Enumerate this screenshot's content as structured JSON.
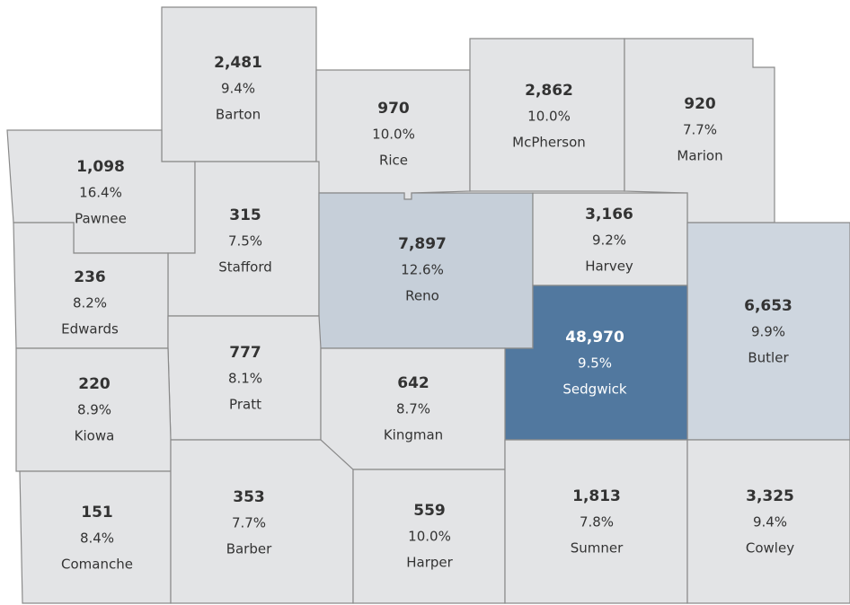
{
  "counties": [
    {
      "name": "Barton",
      "count": "2,481",
      "pct": "9.4%",
      "color": "#e3e4e6"
    },
    {
      "name": "Rice",
      "count": "970",
      "pct": "10.0%",
      "color": "#e3e4e6"
    },
    {
      "name": "McPherson",
      "count": "2,862",
      "pct": "10.0%",
      "color": "#e3e4e6"
    },
    {
      "name": "Marion",
      "count": "920",
      "pct": "7.7%",
      "color": "#e3e4e6"
    },
    {
      "name": "Pawnee",
      "count": "1,098",
      "pct": "16.4%",
      "color": "#e3e4e6"
    },
    {
      "name": "Stafford",
      "count": "315",
      "pct": "7.5%",
      "color": "#e3e4e6"
    },
    {
      "name": "Reno",
      "count": "7,897",
      "pct": "12.6%",
      "color": "#c6cfd9"
    },
    {
      "name": "Harvey",
      "count": "3,166",
      "pct": "9.2%",
      "color": "#e3e4e6"
    },
    {
      "name": "Butler",
      "count": "6,653",
      "pct": "9.9%",
      "color": "#ced6df"
    },
    {
      "name": "Sedgwick",
      "count": "48,970",
      "pct": "9.5%",
      "color": "#51789f"
    },
    {
      "name": "Edwards",
      "count": "236",
      "pct": "8.2%",
      "color": "#e3e4e6"
    },
    {
      "name": "Pratt",
      "count": "777",
      "pct": "8.1%",
      "color": "#e3e4e6"
    },
    {
      "name": "Kingman",
      "count": "642",
      "pct": "8.7%",
      "color": "#e3e4e6"
    },
    {
      "name": "Kiowa",
      "count": "220",
      "pct": "8.9%",
      "color": "#e3e4e6"
    },
    {
      "name": "Comanche",
      "count": "151",
      "pct": "8.4%",
      "color": "#e3e4e6"
    },
    {
      "name": "Barber",
      "count": "353",
      "pct": "7.7%",
      "color": "#e3e4e6"
    },
    {
      "name": "Harper",
      "count": "559",
      "pct": "10.0%",
      "color": "#e3e4e6"
    },
    {
      "name": "Sumner",
      "count": "1,813",
      "pct": "7.8%",
      "color": "#e3e4e6"
    },
    {
      "name": "Cowley",
      "count": "3,325",
      "pct": "9.4%",
      "color": "#e3e4e6"
    }
  ]
}
